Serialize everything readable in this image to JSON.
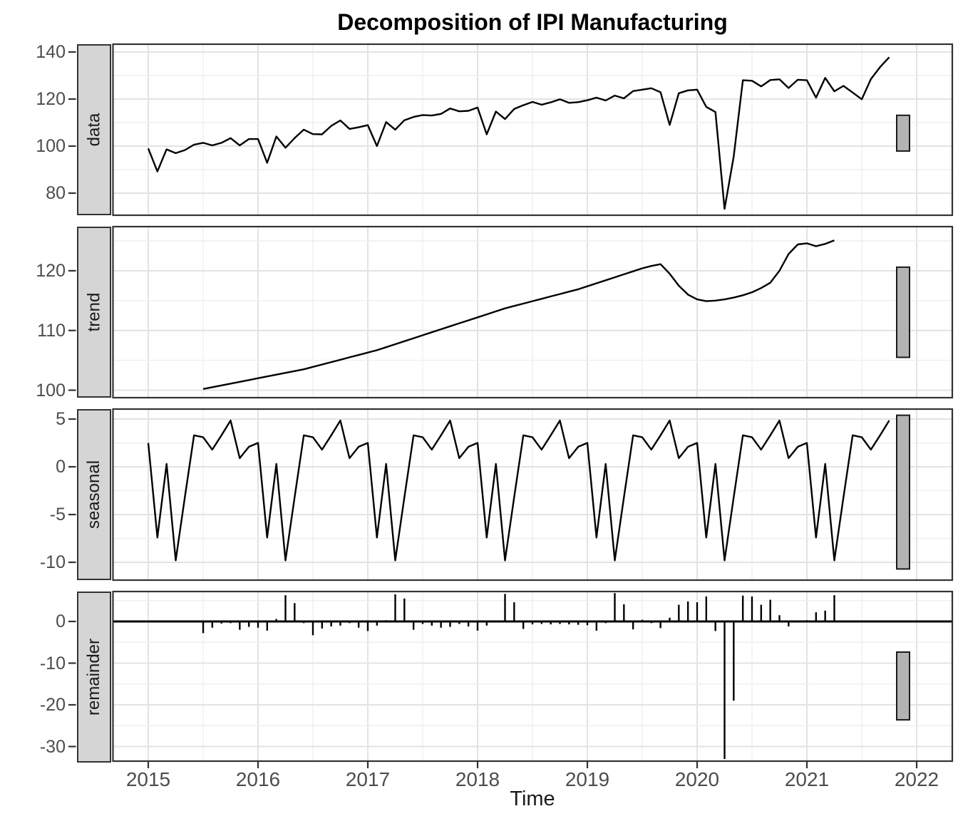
{
  "title": "Decomposition of IPI Manufacturing",
  "x_axis": {
    "label": "Time",
    "tick_years": [
      2015,
      2016,
      2017,
      2018,
      2019,
      2020,
      2021,
      2022
    ]
  },
  "panels": [
    {
      "label": "data",
      "y_tick_labels": [
        "140",
        "120",
        "100",
        "80"
      ],
      "y_tick_values": [
        140,
        120,
        100,
        80
      ]
    },
    {
      "label": "trend",
      "y_tick_labels": [
        "120",
        "110",
        "100"
      ],
      "y_tick_values": [
        120,
        110,
        100
      ]
    },
    {
      "label": "seasonal",
      "y_tick_labels": [
        "5",
        "0",
        "-5",
        "-10"
      ],
      "y_tick_values": [
        5,
        0,
        -5,
        -10
      ]
    },
    {
      "label": "remainder",
      "y_tick_labels": [
        "0",
        "-10",
        "-20",
        "-30"
      ],
      "y_tick_values": [
        0,
        -10,
        -20,
        -30
      ]
    }
  ],
  "colors": {
    "series_line": "#000000",
    "strip_fill": "#d5d5d5",
    "panel_border": "#333333",
    "grid_major": "#e3e3e3",
    "grid_minor": "#efefef",
    "scale_bar_fill": "#b3b3b3",
    "tick_label": "#4d4d4d"
  },
  "chart_data": {
    "type": "line",
    "title": "Decomposition of IPI Manufacturing",
    "xlabel": "Time",
    "x_start_year": 2015,
    "x_step_months": 1,
    "n_points": 82,
    "x_range_years": [
      2014.6,
      2022.35
    ],
    "grid": "major and minor, light gray on white",
    "panels": [
      {
        "name": "data",
        "ylim_shown": [
          80,
          140
        ],
        "style": "line",
        "start_month_index": 0,
        "values": [
          99.0,
          89.2,
          98.6,
          97.0,
          98.3,
          100.6,
          101.4,
          100.3,
          101.4,
          103.4,
          100.3,
          103.0,
          103.0,
          92.9,
          104.1,
          99.3,
          103.4,
          107.0,
          105.1,
          105.0,
          108.6,
          110.9,
          107.3,
          108.0,
          108.9,
          100.0,
          110.2,
          107.0,
          111.0,
          112.4,
          113.2,
          113.0,
          113.7,
          116.0,
          114.8,
          115.0,
          116.4,
          105.0,
          114.7,
          111.5,
          115.8,
          117.4,
          118.8,
          117.6,
          118.6,
          119.9,
          118.4,
          118.7,
          119.5,
          120.6,
          119.4,
          121.5,
          120.3,
          123.4,
          124.0,
          124.6,
          122.9,
          109.0,
          122.5,
          123.7,
          124.0,
          116.7,
          114.5,
          73.3,
          95.5,
          128.0,
          127.8,
          125.4,
          128.1,
          128.4,
          124.7,
          128.2,
          128.0,
          120.6,
          129.0,
          123.3,
          125.6,
          122.8,
          119.9,
          128.5,
          133.6,
          137.8
        ]
      },
      {
        "name": "trend",
        "ylim_shown": [
          100,
          120
        ],
        "style": "line",
        "start_month_index": 6,
        "values": [
          100.2,
          100.5,
          100.8,
          101.1,
          101.4,
          101.7,
          102.0,
          102.3,
          102.6,
          102.9,
          103.2,
          103.5,
          103.9,
          104.3,
          104.7,
          105.1,
          105.5,
          105.9,
          106.3,
          106.7,
          107.2,
          107.7,
          108.2,
          108.7,
          109.2,
          109.7,
          110.2,
          110.7,
          111.2,
          111.7,
          112.2,
          112.7,
          113.2,
          113.7,
          114.1,
          114.5,
          114.9,
          115.3,
          115.7,
          116.1,
          116.5,
          116.9,
          117.4,
          117.9,
          118.4,
          118.9,
          119.4,
          119.9,
          120.4,
          120.8,
          121.1,
          119.5,
          117.5,
          116.0,
          115.2,
          114.9,
          115.0,
          115.2,
          115.5,
          115.9,
          116.4,
          117.1,
          118.0,
          120.0,
          122.8,
          124.4,
          124.6,
          124.1,
          124.5,
          125.1
        ]
      },
      {
        "name": "seasonal",
        "ylim_shown": [
          -10,
          5
        ],
        "style": "line",
        "start_month_index": 0,
        "monthly_pattern": [
          2.5,
          -7.4,
          0.3,
          -9.8,
          -3.2,
          3.3,
          3.1,
          1.8,
          3.3,
          4.85,
          0.9,
          2.1
        ],
        "repeats_for_n_points": 82
      },
      {
        "name": "remainder",
        "ylim_shown": [
          -30,
          0
        ],
        "style": "vertical-segments-from-zero",
        "start_month_index": 6,
        "values": [
          -2.8,
          -1.5,
          -0.5,
          -0.4,
          -2.0,
          -1.3,
          -1.5,
          -2.2,
          0.6,
          6.3,
          4.4,
          -0.4,
          -3.3,
          -1.7,
          -1.2,
          -1.0,
          -0.4,
          -1.5,
          -2.3,
          -1.0,
          0.3,
          6.5,
          5.5,
          -2.0,
          -0.6,
          -1.0,
          -1.5,
          -1.3,
          -0.6,
          -1.2,
          -2.2,
          -1.0,
          0.2,
          6.6,
          4.6,
          -1.8,
          -0.7,
          -0.6,
          -0.7,
          -0.6,
          -0.7,
          -0.8,
          -0.9,
          -2.2,
          -0.4,
          6.8,
          4.1,
          -1.9,
          0.4,
          -0.4,
          -1.6,
          0.9,
          4.0,
          4.8,
          4.6,
          6.0,
          -2.3,
          -33.0,
          -19.0,
          6.2,
          6.0,
          4.0,
          5.2,
          1.5,
          -1.2,
          0.2,
          0.3,
          2.2,
          2.6,
          6.3
        ]
      }
    ],
    "scale_bars": [
      {
        "panel": "data",
        "value_min": 97.9,
        "value_max": 113.1
      },
      {
        "panel": "trend",
        "value_min": 105.5,
        "value_max": 120.6
      },
      {
        "panel": "seasonal",
        "value_min": -10.7,
        "value_max": 5.4
      },
      {
        "panel": "remainder",
        "value_min": -23.6,
        "value_max": -7.35
      }
    ]
  }
}
